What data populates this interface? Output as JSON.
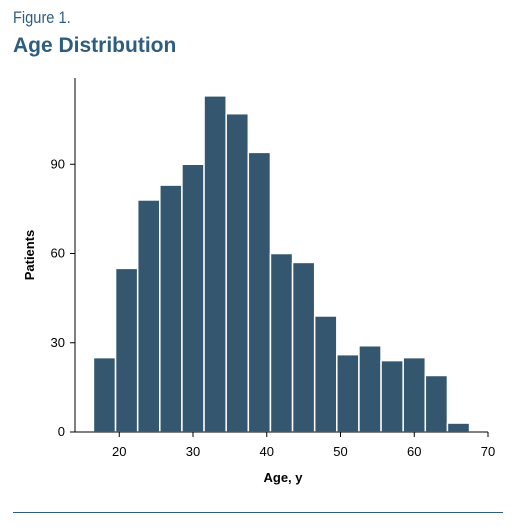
{
  "figure": {
    "label": "Figure 1.",
    "title": "Age Distribution"
  },
  "colors": {
    "bar": "#34566f",
    "title": "#2f5d80",
    "axis": "#000000",
    "rule": "#2f5d80"
  },
  "chart_data": {
    "type": "bar",
    "title": "Age Distribution",
    "xlabel": "Age, y",
    "ylabel": "Patients",
    "bin_width": 3,
    "bin_start": 16.5,
    "values": [
      25,
      55,
      78,
      83,
      90,
      113,
      107,
      94,
      60,
      57,
      39,
      26,
      29,
      24,
      25,
      19,
      3
    ],
    "xlim": [
      14,
      70
    ],
    "ylim": [
      0,
      119
    ],
    "xticks": [
      20,
      30,
      40,
      50,
      60,
      70
    ],
    "yticks": [
      0,
      30,
      60,
      90
    ],
    "grid": false,
    "legend": "none"
  }
}
